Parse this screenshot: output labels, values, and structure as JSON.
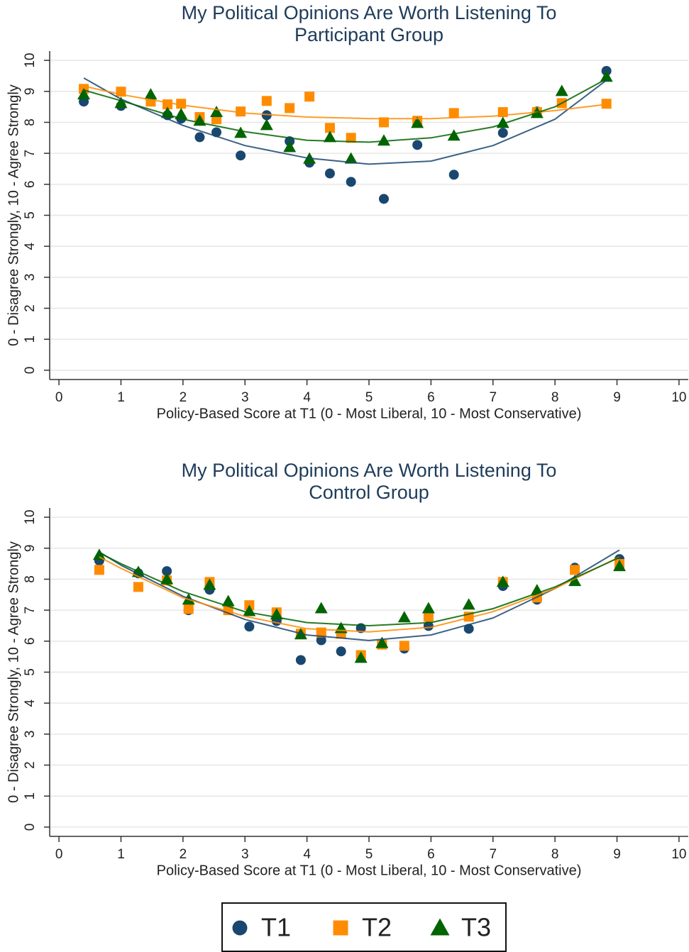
{
  "chart_data": [
    {
      "type": "scatter",
      "title": "My Political Opinions Are Worth Listening To",
      "subtitle": "Participant Group",
      "xlabel": "Policy-Based Score at T1 (0 - Most Liberal, 10 - Most Conservative)",
      "ylabel": "0 - Disagree Strongly, 10 - Agree Strongly",
      "xlim": [
        -0.15,
        10.15
      ],
      "ylim": [
        -0.3,
        10.3
      ],
      "xticks": [
        0,
        1,
        2,
        3,
        4,
        5,
        6,
        7,
        8,
        9,
        10
      ],
      "yticks": [
        0,
        1,
        2,
        3,
        4,
        5,
        6,
        7,
        8,
        9,
        10
      ],
      "grid": true,
      "series": [
        {
          "name": "T1",
          "color": "#1a476f",
          "marker": "circle",
          "x": [
            0.4,
            1.0,
            1.75,
            1.97,
            2.27,
            2.54,
            2.93,
            3.35,
            3.72,
            4.04,
            4.37,
            4.71,
            5.24,
            5.78,
            6.37,
            7.16,
            7.71,
            8.83
          ],
          "values": [
            8.67,
            8.53,
            8.23,
            8.12,
            7.52,
            7.68,
            6.93,
            8.23,
            7.39,
            6.7,
            6.35,
            6.08,
            5.53,
            7.27,
            6.31,
            7.66,
            8.35,
            9.66
          ],
          "fit_x": [
            0.4,
            1,
            2,
            3,
            4,
            5,
            6,
            7,
            8,
            8.83
          ],
          "fit_values": [
            9.43,
            8.75,
            7.9,
            7.25,
            6.85,
            6.65,
            6.75,
            7.25,
            8.1,
            9.36
          ]
        },
        {
          "name": "T2",
          "color": "#ff8c00",
          "marker": "square",
          "x": [
            0.4,
            1.0,
            1.48,
            1.75,
            1.97,
            2.27,
            2.54,
            2.93,
            3.35,
            3.72,
            4.04,
            4.37,
            4.71,
            5.24,
            5.78,
            6.37,
            7.16,
            7.71,
            8.11,
            8.83
          ],
          "values": [
            9.08,
            8.99,
            8.67,
            8.58,
            8.6,
            8.17,
            8.1,
            8.35,
            8.69,
            8.46,
            8.83,
            7.82,
            7.5,
            8.0,
            8.05,
            8.3,
            8.33,
            8.33,
            8.62,
            8.6
          ],
          "fit_x": [
            0.4,
            1,
            2,
            3,
            4,
            5,
            6,
            7,
            8,
            8.83
          ],
          "fit_values": [
            9.17,
            8.9,
            8.55,
            8.3,
            8.17,
            8.12,
            8.12,
            8.2,
            8.38,
            8.58
          ]
        },
        {
          "name": "T3",
          "color": "#006400",
          "marker": "triangle",
          "x": [
            0.4,
            1.0,
            1.48,
            1.75,
            1.97,
            2.27,
            2.54,
            2.93,
            3.35,
            3.72,
            4.04,
            4.37,
            4.71,
            5.24,
            5.78,
            6.37,
            7.16,
            7.71,
            8.11,
            8.83
          ],
          "values": [
            8.9,
            8.62,
            8.9,
            8.3,
            8.26,
            8.05,
            8.33,
            7.66,
            7.91,
            7.2,
            6.83,
            7.52,
            6.83,
            7.41,
            7.98,
            7.57,
            7.98,
            8.3,
            9.01,
            9.47
          ],
          "fit_x": [
            0.4,
            1,
            2,
            3,
            4,
            5,
            6,
            7,
            8,
            8.83
          ],
          "fit_values": [
            9.04,
            8.7,
            8.1,
            7.7,
            7.42,
            7.36,
            7.5,
            7.85,
            8.5,
            9.4
          ]
        }
      ]
    },
    {
      "type": "scatter",
      "title": "My Political Opinions Are Worth Listening To",
      "subtitle": "Control Group",
      "xlabel": "Policy-Based Score at T1 (0 - Most Liberal, 10 - Most Conservative)",
      "ylabel": "0 - Disagree Strongly, 10 - Agree Strongly",
      "xlim": [
        -0.15,
        10.15
      ],
      "ylim": [
        -0.3,
        10.3
      ],
      "xticks": [
        0,
        1,
        2,
        3,
        4,
        5,
        6,
        7,
        8,
        9,
        10
      ],
      "yticks": [
        0,
        1,
        2,
        3,
        4,
        5,
        6,
        7,
        8,
        9,
        10
      ],
      "grid": true,
      "series": [
        {
          "color": "#1a476f",
          "marker": "circle",
          "x": [
            0.65,
            1.28,
            1.74,
            2.09,
            2.43,
            3.07,
            3.51,
            3.9,
            4.23,
            4.55,
            4.87,
            5.21,
            5.57,
            5.96,
            6.61,
            7.16,
            7.71,
            8.32,
            9.04
          ],
          "values": [
            8.6,
            8.19,
            8.26,
            7.0,
            7.66,
            6.47,
            6.65,
            5.39,
            6.03,
            5.67,
            6.42,
            5.89,
            5.76,
            6.49,
            6.4,
            7.78,
            7.34,
            8.37,
            8.65
          ],
          "fit_x": [
            0.65,
            1,
            2,
            3,
            4,
            5,
            6,
            7,
            8,
            9.04
          ],
          "fit_values": [
            8.88,
            8.45,
            7.45,
            6.7,
            6.2,
            6.02,
            6.2,
            6.75,
            7.7,
            8.94
          ]
        },
        {
          "color": "#ff8c00",
          "marker": "square",
          "x": [
            0.65,
            1.28,
            1.74,
            2.09,
            2.43,
            2.73,
            3.07,
            3.51,
            3.9,
            4.23,
            4.55,
            4.87,
            5.21,
            5.57,
            5.96,
            6.61,
            7.16,
            7.71,
            8.32,
            9.04
          ],
          "values": [
            8.3,
            7.75,
            7.96,
            7.04,
            7.91,
            7.0,
            7.16,
            6.93,
            6.24,
            6.28,
            6.24,
            5.55,
            5.89,
            5.85,
            6.79,
            6.79,
            7.91,
            7.41,
            8.3,
            8.49
          ],
          "fit_x": [
            0.65,
            1,
            2,
            3,
            4,
            5,
            6,
            7,
            8,
            9.04
          ],
          "fit_values": [
            8.72,
            8.35,
            7.4,
            6.8,
            6.4,
            6.3,
            6.45,
            6.95,
            7.7,
            8.72
          ]
        },
        {
          "color": "#006400",
          "marker": "triangle",
          "x": [
            0.65,
            1.28,
            1.74,
            2.09,
            2.43,
            2.73,
            3.07,
            3.51,
            3.9,
            4.23,
            4.55,
            4.87,
            5.21,
            5.57,
            5.96,
            6.61,
            7.16,
            7.71,
            8.32,
            9.04
          ],
          "values": [
            8.78,
            8.23,
            8.0,
            7.34,
            7.82,
            7.29,
            6.97,
            6.86,
            6.22,
            7.06,
            6.42,
            5.46,
            5.94,
            6.77,
            7.06,
            7.18,
            7.91,
            7.64,
            7.94,
            8.42
          ],
          "fit_x": [
            0.65,
            1,
            2,
            3,
            4,
            5,
            6,
            7,
            8,
            9.04
          ],
          "fit_values": [
            8.85,
            8.5,
            7.6,
            6.95,
            6.6,
            6.5,
            6.6,
            7.05,
            7.75,
            8.7
          ]
        }
      ]
    }
  ]
}
